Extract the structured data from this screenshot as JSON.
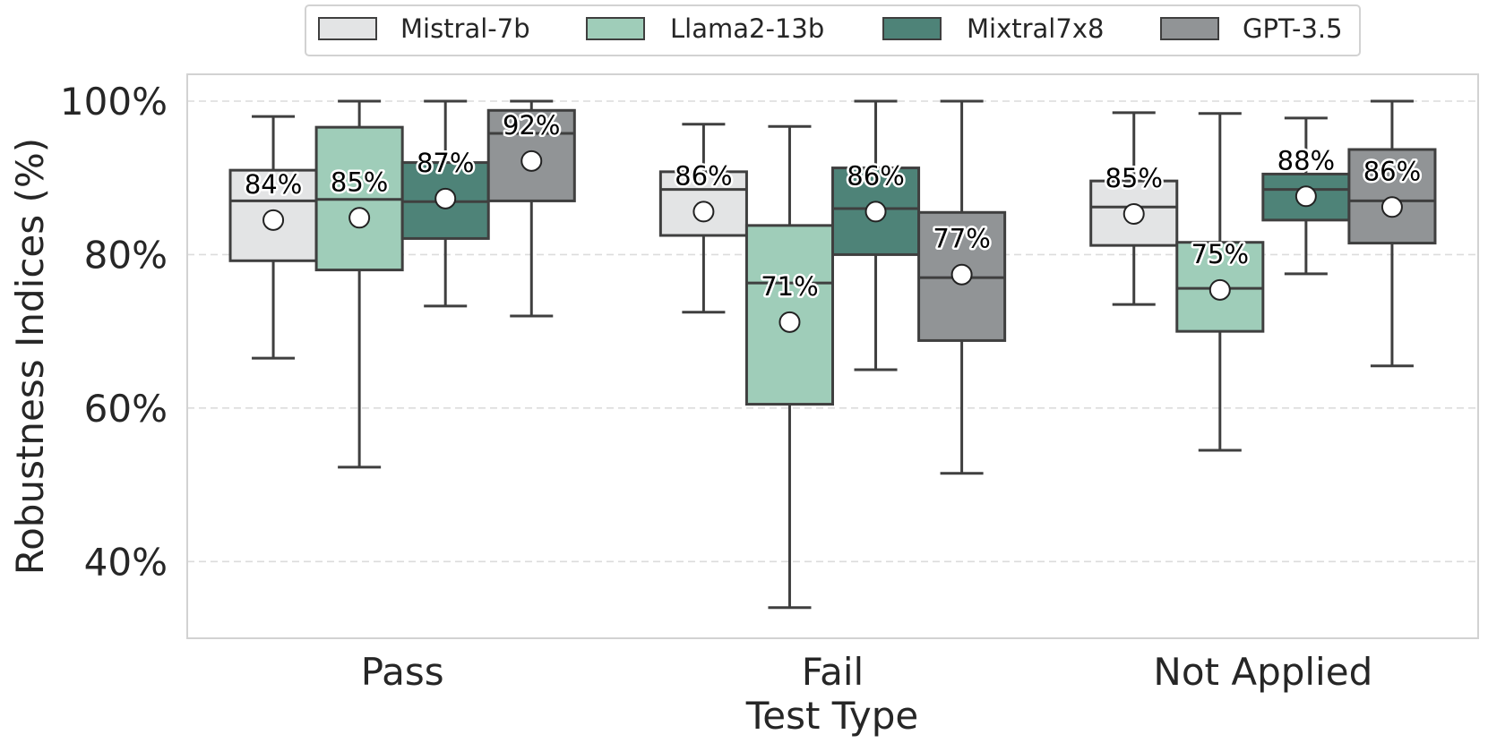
{
  "chart_data": {
    "type": "box",
    "title": "",
    "xlabel": "Test Type",
    "ylabel": "Robustness Indices (%)",
    "ylim": [
      30,
      103.5
    ],
    "yticks": [
      40,
      60,
      80,
      100
    ],
    "ytick_labels": [
      "40%",
      "60%",
      "80%",
      "100%"
    ],
    "grid": "y, dashed",
    "legend_position": "top-center",
    "categories": [
      "Pass",
      "Fail",
      "Not Applied"
    ],
    "series": [
      {
        "name": "Mistral-7b",
        "color": "#e3e4e5",
        "boxes": [
          {
            "whisker_low": 66.5,
            "q1": 79.2,
            "median": 87.0,
            "q3": 91.0,
            "whisker_high": 98.0,
            "mean": 84.5,
            "mean_label": "84%"
          },
          {
            "whisker_low": 72.5,
            "q1": 82.5,
            "median": 88.5,
            "q3": 90.8,
            "whisker_high": 97.0,
            "mean": 85.6,
            "mean_label": "86%"
          },
          {
            "whisker_low": 73.5,
            "q1": 81.2,
            "median": 86.2,
            "q3": 89.6,
            "whisker_high": 98.5,
            "mean": 85.3,
            "mean_label": "85%"
          }
        ]
      },
      {
        "name": "Llama2-13b",
        "color": "#9fcdb9",
        "boxes": [
          {
            "whisker_low": 52.3,
            "q1": 78.0,
            "median": 87.2,
            "q3": 96.6,
            "whisker_high": 100.0,
            "mean": 84.8,
            "mean_label": "85%"
          },
          {
            "whisker_low": 34.0,
            "q1": 60.5,
            "median": 76.3,
            "q3": 83.8,
            "whisker_high": 96.7,
            "mean": 71.2,
            "mean_label": "71%"
          },
          {
            "whisker_low": 54.5,
            "q1": 70.0,
            "median": 75.6,
            "q3": 81.6,
            "whisker_high": 98.4,
            "mean": 75.4,
            "mean_label": "75%"
          }
        ]
      },
      {
        "name": "Mixtral7x8",
        "color": "#4e8378",
        "boxes": [
          {
            "whisker_low": 73.3,
            "q1": 82.1,
            "median": 86.9,
            "q3": 92.0,
            "whisker_high": 100.0,
            "mean": 87.3,
            "mean_label": "87%"
          },
          {
            "whisker_low": 65.0,
            "q1": 80.0,
            "median": 86.0,
            "q3": 91.3,
            "whisker_high": 100.0,
            "mean": 85.6,
            "mean_label": "86%"
          },
          {
            "whisker_low": 77.5,
            "q1": 84.5,
            "median": 88.5,
            "q3": 90.5,
            "whisker_high": 97.8,
            "mean": 87.6,
            "mean_label": "88%"
          }
        ]
      },
      {
        "name": "GPT-3.5",
        "color": "#919496",
        "boxes": [
          {
            "whisker_low": 72.0,
            "q1": 87.0,
            "median": 95.8,
            "q3": 98.8,
            "whisker_high": 100.0,
            "mean": 92.2,
            "mean_label": "92%"
          },
          {
            "whisker_low": 51.5,
            "q1": 68.8,
            "median": 77.0,
            "q3": 85.5,
            "whisker_high": 100.0,
            "mean": 77.4,
            "mean_label": "77%"
          },
          {
            "whisker_low": 65.5,
            "q1": 81.5,
            "median": 87.0,
            "q3": 93.7,
            "whisker_high": 100.0,
            "mean": 86.2,
            "mean_label": "86%"
          }
        ]
      }
    ]
  }
}
